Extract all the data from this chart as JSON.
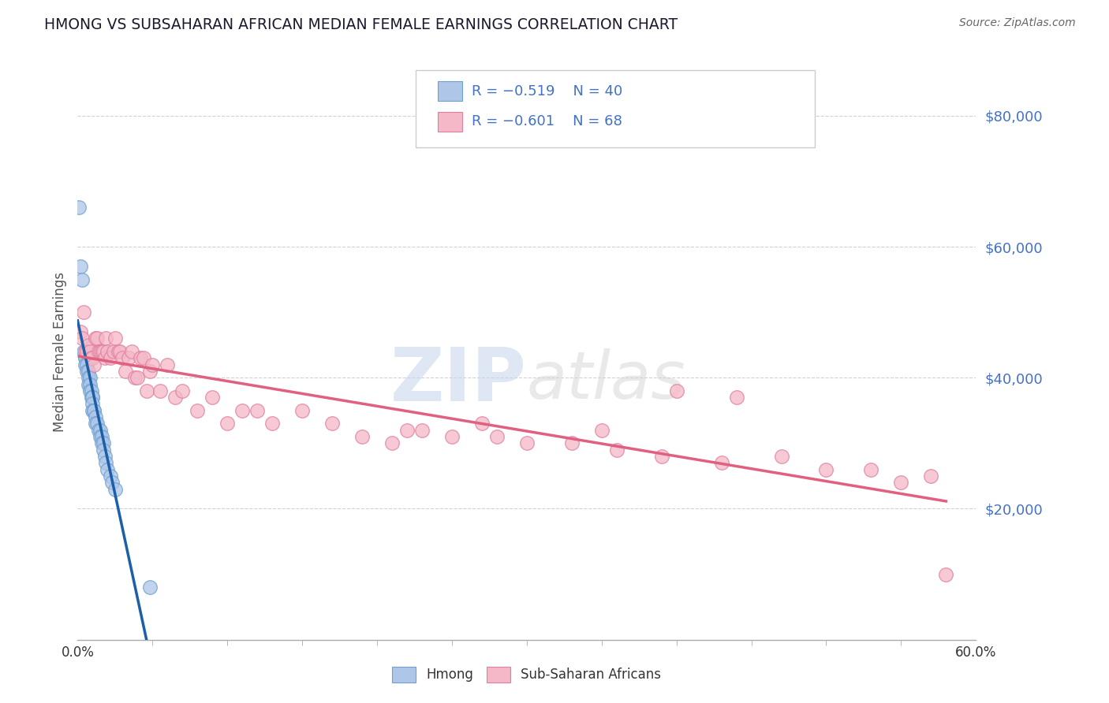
{
  "title": "HMONG VS SUBSAHARAN AFRICAN MEDIAN FEMALE EARNINGS CORRELATION CHART",
  "source": "Source: ZipAtlas.com",
  "ylabel": "Median Female Earnings",
  "y_ticks": [
    20000,
    40000,
    60000,
    80000
  ],
  "y_tick_labels": [
    "$20,000",
    "$40,000",
    "$60,000",
    "$80,000"
  ],
  "x_range": [
    0.0,
    0.6
  ],
  "y_range": [
    0,
    88000
  ],
  "legend_r1": "R = −0.519",
  "legend_n1": "N = 40",
  "legend_r2": "R = −0.601",
  "legend_n2": "N = 68",
  "hmong_color": "#aec6e8",
  "hmong_edge_color": "#6fa0d0",
  "hmong_line_color": "#1a5fa8",
  "subsaharan_color": "#f4b8c8",
  "subsaharan_edge_color": "#e080a0",
  "subsaharan_line_color": "#e06080",
  "watermark_color": "#d0d8e8",
  "background_color": "#ffffff",
  "grid_color": "#cccccc",
  "title_color": "#1a1a2e",
  "source_color": "#666666",
  "ytick_color": "#4472c4",
  "xtick_color": "#333333",
  "hmong_scatter_x": [
    0.001,
    0.002,
    0.003,
    0.004,
    0.005,
    0.005,
    0.005,
    0.006,
    0.006,
    0.007,
    0.007,
    0.007,
    0.008,
    0.008,
    0.008,
    0.009,
    0.009,
    0.01,
    0.01,
    0.01,
    0.01,
    0.011,
    0.011,
    0.012,
    0.012,
    0.013,
    0.014,
    0.015,
    0.015,
    0.016,
    0.016,
    0.017,
    0.017,
    0.018,
    0.019,
    0.02,
    0.022,
    0.023,
    0.025,
    0.048
  ],
  "hmong_scatter_y": [
    66000,
    57000,
    55000,
    44000,
    43000,
    43000,
    42000,
    42000,
    41000,
    41000,
    40000,
    39000,
    40000,
    39000,
    38000,
    38000,
    37000,
    37000,
    37000,
    36000,
    35000,
    35000,
    35000,
    34000,
    33000,
    33000,
    32000,
    32000,
    31000,
    31000,
    30000,
    30000,
    29000,
    28000,
    27000,
    26000,
    25000,
    24000,
    23000,
    8000
  ],
  "subsaharan_scatter_x": [
    0.002,
    0.003,
    0.004,
    0.005,
    0.006,
    0.007,
    0.008,
    0.009,
    0.01,
    0.011,
    0.012,
    0.013,
    0.014,
    0.015,
    0.016,
    0.017,
    0.018,
    0.019,
    0.02,
    0.022,
    0.024,
    0.025,
    0.027,
    0.028,
    0.03,
    0.032,
    0.034,
    0.036,
    0.038,
    0.04,
    0.042,
    0.044,
    0.046,
    0.048,
    0.05,
    0.055,
    0.06,
    0.065,
    0.07,
    0.08,
    0.09,
    0.1,
    0.11,
    0.12,
    0.13,
    0.15,
    0.17,
    0.19,
    0.21,
    0.23,
    0.25,
    0.27,
    0.3,
    0.33,
    0.36,
    0.39,
    0.43,
    0.47,
    0.5,
    0.53,
    0.55,
    0.57,
    0.4,
    0.44,
    0.28,
    0.22,
    0.35,
    0.58
  ],
  "subsaharan_scatter_y": [
    47000,
    46000,
    50000,
    44000,
    44000,
    45000,
    44000,
    43000,
    43000,
    42000,
    46000,
    46000,
    44000,
    44000,
    44000,
    44000,
    43000,
    46000,
    44000,
    43000,
    44000,
    46000,
    44000,
    44000,
    43000,
    41000,
    43000,
    44000,
    40000,
    40000,
    43000,
    43000,
    38000,
    41000,
    42000,
    38000,
    42000,
    37000,
    38000,
    35000,
    37000,
    33000,
    35000,
    35000,
    33000,
    35000,
    33000,
    31000,
    30000,
    32000,
    31000,
    33000,
    30000,
    30000,
    29000,
    28000,
    27000,
    28000,
    26000,
    26000,
    24000,
    25000,
    38000,
    37000,
    31000,
    32000,
    32000,
    10000
  ]
}
